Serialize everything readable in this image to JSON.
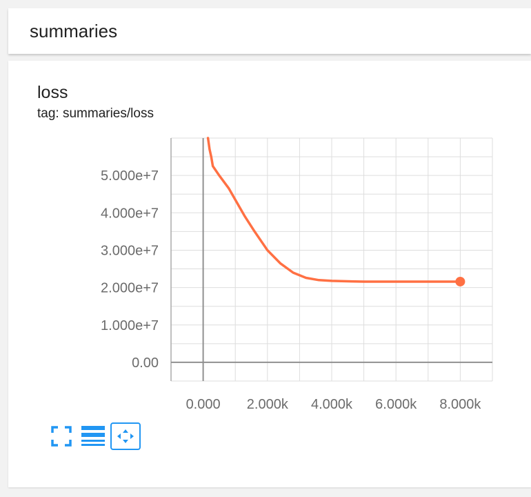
{
  "header": {
    "title": "summaries"
  },
  "chart_card": {
    "title": "loss",
    "tag": "tag: summaries/loss"
  },
  "toolbar": {
    "buttons": [
      {
        "icon": "fullscreen-icon"
      },
      {
        "icon": "log-scale-icon"
      },
      {
        "icon": "fit-domain-icon",
        "active": true
      }
    ]
  },
  "colors": {
    "series": "#ff7043",
    "accent": "#2196f3"
  },
  "chart_data": {
    "type": "line",
    "title": "loss",
    "xlabel": "",
    "ylabel": "",
    "xlim": [
      -1000,
      9000
    ],
    "ylim": [
      -5000000,
      60000000
    ],
    "grid": true,
    "x_ticks": [
      {
        "value": 0,
        "label": "0.000"
      },
      {
        "value": 2000,
        "label": "2.000k"
      },
      {
        "value": 4000,
        "label": "4.000k"
      },
      {
        "value": 6000,
        "label": "6.000k"
      },
      {
        "value": 8000,
        "label": "8.000k"
      }
    ],
    "y_ticks": [
      {
        "value": 0,
        "label": "0.00"
      },
      {
        "value": 10000000,
        "label": "1.000e+7"
      },
      {
        "value": 20000000,
        "label": "2.000e+7"
      },
      {
        "value": 30000000,
        "label": "3.000e+7"
      },
      {
        "value": 40000000,
        "label": "4.000e+7"
      },
      {
        "value": 50000000,
        "label": "5.000e+7"
      }
    ],
    "series": [
      {
        "color": "#ff7043",
        "x": [
          150,
          200,
          250,
          300,
          500,
          800,
          1000,
          1300,
          1600,
          2000,
          2400,
          2800,
          3200,
          3600,
          4000,
          4400,
          5000,
          6000,
          7000,
          8000
        ],
        "y": [
          60000000,
          57000000,
          55000000,
          52500000,
          50000000,
          46500000,
          43500000,
          39000000,
          35000000,
          30000000,
          26500000,
          24000000,
          22600000,
          22000000,
          21800000,
          21700000,
          21600000,
          21600000,
          21600000,
          21600000
        ]
      }
    ]
  }
}
